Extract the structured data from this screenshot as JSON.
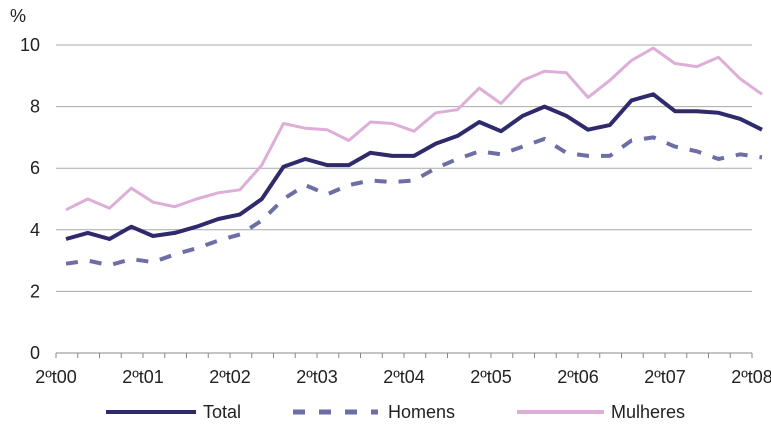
{
  "chart_data": {
    "type": "line",
    "ylabel": "%",
    "ylim": [
      0,
      10
    ],
    "yticks": [
      "0",
      "2",
      "4",
      "6",
      "8",
      "10"
    ],
    "xtick_labels": [
      "2ºt00",
      "2ºt01",
      "2ºt02",
      "2ºt03",
      "2ºt04",
      "2ºt05",
      "2ºt06",
      "2ºt07",
      "2ºt08"
    ],
    "grid": true,
    "legend_position": "bottom",
    "series": [
      {
        "name": "Total",
        "color": "#2e2a6b",
        "style": "solid",
        "values": [
          3.7,
          3.9,
          3.7,
          4.1,
          3.8,
          3.9,
          4.1,
          4.35,
          4.5,
          5.0,
          6.05,
          6.3,
          6.1,
          6.1,
          6.5,
          6.4,
          6.4,
          6.8,
          7.05,
          7.5,
          7.2,
          7.7,
          8.0,
          7.7,
          7.25,
          7.4,
          8.2,
          8.4,
          7.85,
          7.85,
          7.8,
          7.6,
          7.25
        ]
      },
      {
        "name": "Homens",
        "color": "#6e6ea6",
        "style": "dashed",
        "values": [
          2.9,
          3.0,
          2.85,
          3.05,
          2.95,
          3.2,
          3.4,
          3.65,
          3.85,
          4.3,
          5.0,
          5.45,
          5.15,
          5.45,
          5.6,
          5.55,
          5.6,
          6.0,
          6.3,
          6.55,
          6.45,
          6.7,
          6.95,
          6.5,
          6.4,
          6.4,
          6.9,
          7.0,
          6.7,
          6.55,
          6.3,
          6.45,
          6.35
        ]
      },
      {
        "name": "Mulheres",
        "color": "#dcaed8",
        "style": "solid",
        "values": [
          4.65,
          5.0,
          4.7,
          5.35,
          4.9,
          4.75,
          5.0,
          5.2,
          5.3,
          6.1,
          7.45,
          7.3,
          7.25,
          6.9,
          7.5,
          7.45,
          7.2,
          7.8,
          7.9,
          8.6,
          8.1,
          8.85,
          9.15,
          9.1,
          8.3,
          8.85,
          9.5,
          9.9,
          9.4,
          9.3,
          9.6,
          8.9,
          8.4
        ]
      }
    ]
  }
}
